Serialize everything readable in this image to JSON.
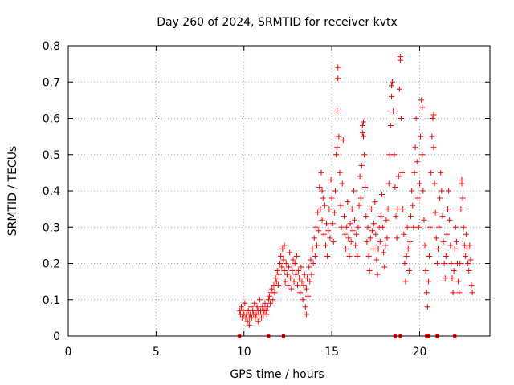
{
  "chart_data": {
    "type": "scatter",
    "title": "Day 260 of 2024, SRMTID for receiver kvtx",
    "xlabel": "GPS time / hours",
    "ylabel": "SRMTID / TECUs",
    "xlim": [
      0,
      24
    ],
    "ylim": [
      0,
      0.8
    ],
    "xticks": [
      0,
      5,
      10,
      15,
      20
    ],
    "yticks": [
      0,
      0.1,
      0.2,
      0.3,
      0.4,
      0.5,
      0.6,
      0.7,
      0.8
    ],
    "xtick_labels": [
      "0",
      "5",
      "10",
      "15",
      "20"
    ],
    "ytick_labels": [
      "0",
      "0.1",
      "0.2",
      "0.3",
      "0.4",
      "0.5",
      "0.6",
      "0.7",
      "0.8"
    ],
    "grid": true,
    "marker": "+",
    "color": "#ff0000",
    "series": [
      {
        "name": "SRMTID",
        "points": [
          [
            9.75,
            0.07
          ],
          [
            9.8,
            0.06
          ],
          [
            9.85,
            0.08
          ],
          [
            9.9,
            0.05
          ],
          [
            9.95,
            0.07
          ],
          [
            10.0,
            0.06
          ],
          [
            10.05,
            0.09
          ],
          [
            10.1,
            0.05
          ],
          [
            10.15,
            0.06
          ],
          [
            10.2,
            0.04
          ],
          [
            10.25,
            0.07
          ],
          [
            10.3,
            0.05
          ],
          [
            10.35,
            0.06
          ],
          [
            10.4,
            0.08
          ],
          [
            10.45,
            0.05
          ],
          [
            10.5,
            0.07
          ],
          [
            10.55,
            0.06
          ],
          [
            10.6,
            0.09
          ],
          [
            10.65,
            0.05
          ],
          [
            10.7,
            0.06
          ],
          [
            10.75,
            0.08
          ],
          [
            10.8,
            0.07
          ],
          [
            10.85,
            0.06
          ],
          [
            10.9,
            0.1
          ],
          [
            10.95,
            0.07
          ],
          [
            11.0,
            0.05
          ],
          [
            11.05,
            0.08
          ],
          [
            11.1,
            0.06
          ],
          [
            11.15,
            0.07
          ],
          [
            11.2,
            0.09
          ],
          [
            11.25,
            0.07
          ],
          [
            11.3,
            0.06
          ],
          [
            11.35,
            0.08
          ],
          [
            11.4,
            0.1
          ],
          [
            11.45,
            0.11
          ],
          [
            11.5,
            0.09
          ],
          [
            11.55,
            0.12
          ],
          [
            11.6,
            0.13
          ],
          [
            11.65,
            0.1
          ],
          [
            11.7,
            0.14
          ],
          [
            11.75,
            0.12
          ],
          [
            11.8,
            0.16
          ],
          [
            11.85,
            0.15
          ],
          [
            11.9,
            0.18
          ],
          [
            11.95,
            0.14
          ],
          [
            12.0,
            0.17
          ],
          [
            12.05,
            0.2
          ],
          [
            12.1,
            0.22
          ],
          [
            12.15,
            0.19
          ],
          [
            12.2,
            0.24
          ],
          [
            12.25,
            0.21
          ],
          [
            12.3,
            0.18
          ],
          [
            12.35,
            0.15
          ],
          [
            12.4,
            0.2
          ],
          [
            12.45,
            0.17
          ],
          [
            12.5,
            0.14
          ],
          [
            12.55,
            0.19
          ],
          [
            12.6,
            0.23
          ],
          [
            12.65,
            0.16
          ],
          [
            12.7,
            0.13
          ],
          [
            12.75,
            0.18
          ],
          [
            12.8,
            0.21
          ],
          [
            12.85,
            0.15
          ],
          [
            12.9,
            0.2
          ],
          [
            12.95,
            0.17
          ],
          [
            13.0,
            0.22
          ],
          [
            13.05,
            0.14
          ],
          [
            13.1,
            0.18
          ],
          [
            13.15,
            0.16
          ],
          [
            13.2,
            0.12
          ],
          [
            13.25,
            0.19
          ],
          [
            13.3,
            0.15
          ],
          [
            13.35,
            0.1
          ],
          [
            13.4,
            0.14
          ],
          [
            13.45,
            0.17
          ],
          [
            13.5,
            0.08
          ],
          [
            13.55,
            0.13
          ],
          [
            13.6,
            0.16
          ],
          [
            13.65,
            0.11
          ],
          [
            13.7,
            0.19
          ],
          [
            13.75,
            0.15
          ],
          [
            13.8,
            0.21
          ],
          [
            13.85,
            0.17
          ],
          [
            13.9,
            0.24
          ],
          [
            13.95,
            0.2
          ],
          [
            14.0,
            0.27
          ],
          [
            14.05,
            0.22
          ],
          [
            14.1,
            0.3
          ],
          [
            14.15,
            0.25
          ],
          [
            14.2,
            0.34
          ],
          [
            14.25,
            0.29
          ],
          [
            14.3,
            0.41
          ],
          [
            14.35,
            0.35
          ],
          [
            14.4,
            0.45
          ],
          [
            14.45,
            0.32
          ],
          [
            14.5,
            0.38
          ],
          [
            14.55,
            0.28
          ],
          [
            14.6,
            0.36
          ],
          [
            14.65,
            0.25
          ],
          [
            14.7,
            0.31
          ],
          [
            14.75,
            0.22
          ],
          [
            14.8,
            0.29
          ],
          [
            14.85,
            0.35
          ],
          [
            14.9,
            0.27
          ],
          [
            14.95,
            0.43
          ],
          [
            15.0,
            0.38
          ],
          [
            15.05,
            0.31
          ],
          [
            15.1,
            0.26
          ],
          [
            15.15,
            0.34
          ],
          [
            15.2,
            0.4
          ],
          [
            15.25,
            0.5
          ],
          [
            15.3,
            0.62
          ],
          [
            15.35,
            0.74
          ],
          [
            15.4,
            0.55
          ],
          [
            15.45,
            0.45
          ],
          [
            15.5,
            0.36
          ],
          [
            15.55,
            0.3
          ],
          [
            15.6,
            0.42
          ],
          [
            15.65,
            0.54
          ],
          [
            15.7,
            0.33
          ],
          [
            15.75,
            0.28
          ],
          [
            15.8,
            0.24
          ],
          [
            15.85,
            0.3
          ],
          [
            15.9,
            0.37
          ],
          [
            15.95,
            0.27
          ],
          [
            16.0,
            0.22
          ],
          [
            16.05,
            0.31
          ],
          [
            16.1,
            0.26
          ],
          [
            16.15,
            0.35
          ],
          [
            16.2,
            0.29
          ],
          [
            16.25,
            0.4
          ],
          [
            16.3,
            0.32
          ],
          [
            16.35,
            0.25
          ],
          [
            16.4,
            0.28
          ],
          [
            16.45,
            0.22
          ],
          [
            16.5,
            0.3
          ],
          [
            16.55,
            0.36
          ],
          [
            16.6,
            0.44
          ],
          [
            16.65,
            0.38
          ],
          [
            16.7,
            0.47
          ],
          [
            16.75,
            0.56
          ],
          [
            16.8,
            0.59
          ],
          [
            16.85,
            0.5
          ],
          [
            16.9,
            0.41
          ],
          [
            16.95,
            0.33
          ],
          [
            17.0,
            0.26
          ],
          [
            17.05,
            0.3
          ],
          [
            17.1,
            0.22
          ],
          [
            17.15,
            0.18
          ],
          [
            17.2,
            0.27
          ],
          [
            17.25,
            0.35
          ],
          [
            17.3,
            0.29
          ],
          [
            17.35,
            0.24
          ],
          [
            17.4,
            0.31
          ],
          [
            17.45,
            0.37
          ],
          [
            17.5,
            0.28
          ],
          [
            17.55,
            0.21
          ],
          [
            17.6,
            0.17
          ],
          [
            17.65,
            0.24
          ],
          [
            17.7,
            0.3
          ],
          [
            17.75,
            0.26
          ],
          [
            17.8,
            0.33
          ],
          [
            17.85,
            0.39
          ],
          [
            17.9,
            0.3
          ],
          [
            17.95,
            0.23
          ],
          [
            18.0,
            0.19
          ],
          [
            18.05,
            0.25
          ],
          [
            18.1,
            0.32
          ],
          [
            18.15,
            0.27
          ],
          [
            18.2,
            0.35
          ],
          [
            18.25,
            0.42
          ],
          [
            18.3,
            0.5
          ],
          [
            18.35,
            0.58
          ],
          [
            18.4,
            0.66
          ],
          [
            18.45,
            0.7
          ],
          [
            18.5,
            0.62
          ],
          [
            18.55,
            0.5
          ],
          [
            18.6,
            0.41
          ],
          [
            18.65,
            0.33
          ],
          [
            18.7,
            0.27
          ],
          [
            18.75,
            0.35
          ],
          [
            18.8,
            0.44
          ],
          [
            18.85,
            0.68
          ],
          [
            18.9,
            0.76
          ],
          [
            18.95,
            0.6
          ],
          [
            19.0,
            0.45
          ],
          [
            19.05,
            0.35
          ],
          [
            19.1,
            0.28
          ],
          [
            19.15,
            0.2
          ],
          [
            19.2,
            0.15
          ],
          [
            19.25,
            0.22
          ],
          [
            19.3,
            0.3
          ],
          [
            19.35,
            0.24
          ],
          [
            19.4,
            0.18
          ],
          [
            19.45,
            0.26
          ],
          [
            19.5,
            0.33
          ],
          [
            19.55,
            0.4
          ],
          [
            19.6,
            0.36
          ],
          [
            19.65,
            0.3
          ],
          [
            19.7,
            0.45
          ],
          [
            19.75,
            0.52
          ],
          [
            19.8,
            0.6
          ],
          [
            19.85,
            0.48
          ],
          [
            19.9,
            0.38
          ],
          [
            19.95,
            0.3
          ],
          [
            20.0,
            0.42
          ],
          [
            20.05,
            0.55
          ],
          [
            20.1,
            0.65
          ],
          [
            20.15,
            0.5
          ],
          [
            20.2,
            0.4
          ],
          [
            20.25,
            0.32
          ],
          [
            20.3,
            0.25
          ],
          [
            20.35,
            0.18
          ],
          [
            20.4,
            0.12
          ],
          [
            20.45,
            0.08
          ],
          [
            20.5,
            0.15
          ],
          [
            20.55,
            0.22
          ],
          [
            20.6,
            0.3
          ],
          [
            20.65,
            0.45
          ],
          [
            20.7,
            0.55
          ],
          [
            20.75,
            0.6
          ],
          [
            20.8,
            0.52
          ],
          [
            20.85,
            0.42
          ],
          [
            20.9,
            0.34
          ],
          [
            20.95,
            0.27
          ],
          [
            21.0,
            0.2
          ],
          [
            21.05,
            0.24
          ],
          [
            21.1,
            0.3
          ],
          [
            21.15,
            0.38
          ],
          [
            21.2,
            0.45
          ],
          [
            21.25,
            0.4
          ],
          [
            21.3,
            0.33
          ],
          [
            21.35,
            0.26
          ],
          [
            21.4,
            0.2
          ],
          [
            21.45,
            0.16
          ],
          [
            21.5,
            0.22
          ],
          [
            21.55,
            0.28
          ],
          [
            21.6,
            0.35
          ],
          [
            21.65,
            0.4
          ],
          [
            21.7,
            0.32
          ],
          [
            21.75,
            0.25
          ],
          [
            21.8,
            0.2
          ],
          [
            21.85,
            0.16
          ],
          [
            21.9,
            0.12
          ],
          [
            21.95,
            0.18
          ],
          [
            22.0,
            0.24
          ],
          [
            22.05,
            0.3
          ],
          [
            22.1,
            0.26
          ],
          [
            22.15,
            0.2
          ],
          [
            22.2,
            0.15
          ],
          [
            22.25,
            0.12
          ],
          [
            22.3,
            0.2
          ],
          [
            22.35,
            0.35
          ],
          [
            22.4,
            0.42
          ],
          [
            22.45,
            0.38
          ],
          [
            22.5,
            0.3
          ],
          [
            22.55,
            0.25
          ],
          [
            22.6,
            0.22
          ],
          [
            22.65,
            0.28
          ],
          [
            22.7,
            0.24
          ],
          [
            22.75,
            0.2
          ],
          [
            22.8,
            0.18
          ],
          [
            22.85,
            0.25
          ],
          [
            22.9,
            0.21
          ],
          [
            22.95,
            0.14
          ],
          [
            23.0,
            0.12
          ],
          [
            14.45,
            0.4
          ],
          [
            15.3,
            0.52
          ],
          [
            16.8,
            0.55
          ],
          [
            18.4,
            0.69
          ],
          [
            18.9,
            0.77
          ],
          [
            20.15,
            0.63
          ],
          [
            20.8,
            0.61
          ],
          [
            22.4,
            0.43
          ],
          [
            15.35,
            0.71
          ],
          [
            16.75,
            0.58
          ],
          [
            12.3,
            0.25
          ],
          [
            13.55,
            0.06
          ],
          [
            10.3,
            0.03
          ],
          [
            10.8,
            0.04
          ]
        ]
      }
    ],
    "rug_x": [
      9.75,
      11.4,
      12.25,
      18.6,
      18.9,
      20.4,
      20.5,
      21.0,
      22.0
    ]
  }
}
